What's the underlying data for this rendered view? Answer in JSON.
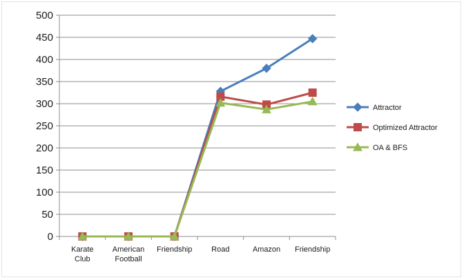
{
  "chart_data": {
    "type": "line",
    "title": "",
    "xlabel": "",
    "ylabel": "",
    "ylim": [
      0,
      500
    ],
    "yticks": [
      0,
      50,
      100,
      150,
      200,
      250,
      300,
      350,
      400,
      450,
      500
    ],
    "grid": true,
    "legend_position": "right",
    "categories": [
      [
        "Karate",
        "Club"
      ],
      [
        "American",
        "Football"
      ],
      [
        "Friendship"
      ],
      [
        "Road"
      ],
      [
        "Amazon"
      ],
      [
        "Friendship"
      ]
    ],
    "series": [
      {
        "name": "Attractor",
        "color": "#4a7ebb",
        "marker": "diamond",
        "values": [
          0,
          0,
          0,
          328,
          380,
          447
        ]
      },
      {
        "name": "Optimized Attractor",
        "color": "#be4b48",
        "marker": "square",
        "values": [
          0,
          0,
          0,
          316,
          298,
          325
        ]
      },
      {
        "name": "OA & BFS",
        "color": "#98b954",
        "marker": "triangle",
        "values": [
          0,
          0,
          0,
          302,
          287,
          305
        ]
      }
    ]
  }
}
